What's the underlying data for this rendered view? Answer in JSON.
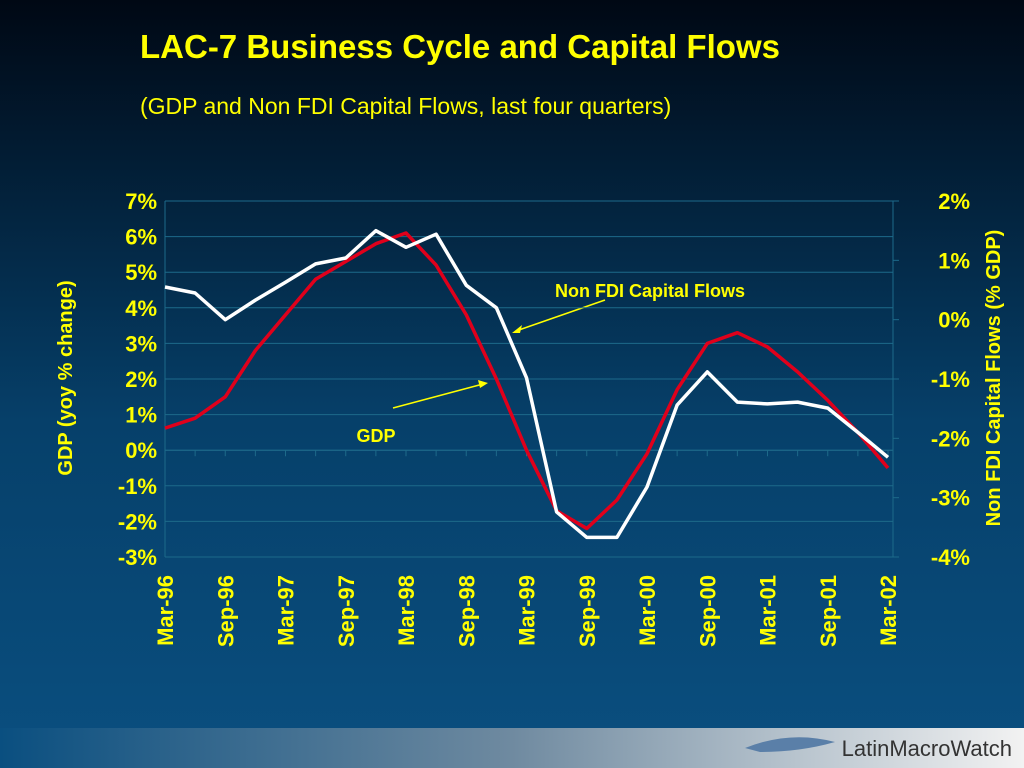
{
  "chart_data": {
    "type": "line",
    "title": "LAC-7 Business Cycle and Capital Flows",
    "subtitle": "(GDP and Non FDI Capital Flows, last four quarters)",
    "y_label": "GDP (yoy % change)",
    "y2_label": "Non FDI Capital Flows (% GDP)",
    "categories": [
      "Mar-96",
      null,
      "Sep-96",
      null,
      "Mar-97",
      null,
      "Sep-97",
      null,
      "Mar-98",
      null,
      "Sep-98",
      null,
      "Mar-99",
      null,
      "Sep-99",
      null,
      "Mar-00",
      null,
      "Sep-00",
      null,
      "Mar-01",
      null,
      "Sep-01",
      null,
      "Mar-02"
    ],
    "series": [
      {
        "name": "GDP",
        "color": "#e0001b",
        "axis": "y",
        "values": [
          0.62,
          0.9,
          1.5,
          2.8,
          3.8,
          4.8,
          5.3,
          5.8,
          6.1,
          5.2,
          3.8,
          2.0,
          0.0,
          -1.7,
          -2.2,
          -1.4,
          -0.1,
          1.7,
          3.0,
          3.3,
          2.9,
          2.2,
          1.4,
          0.5,
          -0.5
        ]
      },
      {
        "name": "Non FDI Capital Flows",
        "color": "#ffffff",
        "axis": "y2",
        "values": [
          0.55,
          0.45,
          0.0,
          0.33,
          0.63,
          0.94,
          1.04,
          1.5,
          1.22,
          1.44,
          0.58,
          0.2,
          -0.98,
          -3.24,
          -3.67,
          -3.67,
          -2.82,
          -1.44,
          -0.88,
          -1.39,
          -1.42,
          -1.39,
          -1.49,
          -1.9,
          -2.32
        ]
      }
    ],
    "ylim": [
      -3,
      7
    ],
    "yticks": [
      {
        "value": -3,
        "label": "-3%"
      },
      {
        "value": -2,
        "label": "-2%"
      },
      {
        "value": -1,
        "label": "-1%"
      },
      {
        "value": 0,
        "label": "0%"
      },
      {
        "value": 1,
        "label": "1%"
      },
      {
        "value": 2,
        "label": "2%"
      },
      {
        "value": 3,
        "label": "3%"
      },
      {
        "value": 4,
        "label": "4%"
      },
      {
        "value": 5,
        "label": "5%"
      },
      {
        "value": 6,
        "label": "6%"
      },
      {
        "value": 7,
        "label": "7%"
      }
    ],
    "y2lim": [
      -4,
      2
    ],
    "y2ticks": [
      {
        "value": -4,
        "label": "-4%"
      },
      {
        "value": -3,
        "label": "-3%"
      },
      {
        "value": -2,
        "label": "-2%"
      },
      {
        "value": -1,
        "label": "-1%"
      },
      {
        "value": 0,
        "label": "0%"
      },
      {
        "value": 1,
        "label": "1%"
      },
      {
        "value": 2,
        "label": "2%"
      }
    ],
    "grid": true,
    "text_color": "#ffff00"
  },
  "brand": "LatinMacroWatch"
}
